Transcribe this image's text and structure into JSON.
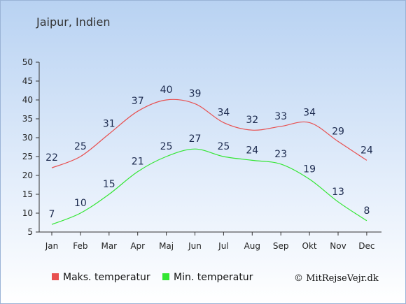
{
  "chart_data": {
    "type": "line",
    "title": "Jaipur, Indien",
    "categories": [
      "Jan",
      "Feb",
      "Mar",
      "Apr",
      "Maj",
      "Jun",
      "Jul",
      "Aug",
      "Sep",
      "Okt",
      "Nov",
      "Dec"
    ],
    "series": [
      {
        "name": "Maks. temperatur",
        "color": "#e85050",
        "values": [
          22,
          25,
          31,
          37,
          40,
          39,
          34,
          32,
          33,
          34,
          29,
          24
        ]
      },
      {
        "name": "Min. temperatur",
        "color": "#33e633",
        "values": [
          7,
          10,
          15,
          21,
          25,
          27,
          25,
          24,
          23,
          19,
          13,
          8
        ]
      }
    ],
    "yticks": [
      5,
      10,
      15,
      20,
      25,
      30,
      35,
      40,
      45,
      50
    ],
    "ylim": [
      5,
      50
    ],
    "legend_position": "bottom",
    "grid": false
  },
  "credit": "© MitRejseVejr.dk"
}
